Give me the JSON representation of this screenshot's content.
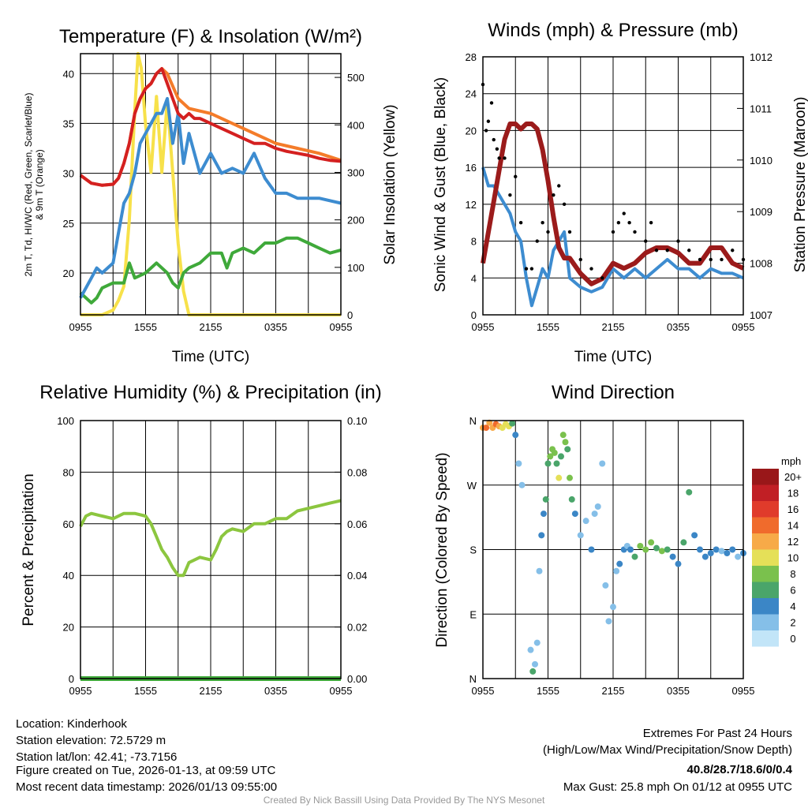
{
  "chart_data": [
    {
      "type": "line",
      "title": "Temperature (F) & Insolation (W/m²)",
      "xlabel": "Time (UTC)",
      "ylabel_lines": [
        "2m T, Td, HI/WC (Red, Green, Scarlet/Blue)",
        "& 9m T (Orange)"
      ],
      "ylabel_right": "Solar Insolation (Yellow)",
      "xticks": [
        "0955",
        "1555",
        "2155",
        "0355",
        "0955"
      ],
      "x_units": "hours since 0955 UTC",
      "xlim": [
        0,
        24
      ],
      "ylim": [
        15.8,
        42
      ],
      "yticks": [
        20,
        25,
        30,
        35,
        40
      ],
      "ylim_right": [
        0,
        550
      ],
      "yticks_right": [
        0,
        100,
        200,
        300,
        400,
        500
      ],
      "series": [
        {
          "name": "Solar Insolation",
          "axis": "right",
          "color": "#f7e14a",
          "x": [
            0,
            2,
            3,
            3.5,
            4,
            4.5,
            5,
            5.3,
            5.6,
            6,
            6.5,
            7,
            7.5,
            8,
            8.5,
            9,
            9.5,
            10,
            24
          ],
          "y": [
            0,
            0,
            10,
            30,
            60,
            200,
            430,
            550,
            520,
            400,
            300,
            460,
            300,
            450,
            300,
            150,
            50,
            0,
            0
          ]
        },
        {
          "name": "Dewpoint",
          "axis": "left",
          "color": "#3fa93a",
          "x": [
            0,
            1,
            1.5,
            2,
            3,
            4,
            4.5,
            5,
            6,
            6.5,
            7,
            8,
            8.5,
            9,
            9.5,
            10,
            11,
            12,
            13,
            13.5,
            14,
            15,
            16,
            17,
            18,
            19,
            20,
            21,
            22,
            23,
            24
          ],
          "y": [
            18,
            17,
            17.5,
            18.5,
            19,
            19,
            21,
            19.5,
            20,
            20.5,
            21,
            20,
            19,
            18.5,
            20,
            20.5,
            21,
            22,
            22,
            20.5,
            22,
            22.5,
            22,
            23,
            23,
            23.5,
            23.5,
            23,
            22.5,
            22,
            22.3
          ]
        },
        {
          "name": "Wind Chill",
          "axis": "left",
          "color": "#3d8cd0",
          "x": [
            0,
            1,
            1.5,
            2,
            2.5,
            3,
            3.5,
            4,
            4.5,
            5,
            5.5,
            6,
            6.5,
            7,
            7.5,
            8,
            8.5,
            9,
            9.5,
            10,
            11,
            12,
            13,
            14,
            15,
            16,
            17,
            18,
            19,
            20,
            22,
            24
          ],
          "y": [
            17.5,
            19.5,
            20.5,
            20,
            20.5,
            21,
            24,
            27,
            28,
            30,
            33,
            34,
            35,
            36,
            36,
            37.5,
            33,
            36,
            31,
            34,
            30,
            32,
            30,
            30.5,
            30,
            32,
            29.5,
            28,
            28,
            27.5,
            27.5,
            27
          ]
        },
        {
          "name": "9m Temperature",
          "axis": "left",
          "color": "#f47c2a",
          "x": [
            0,
            1,
            2,
            3,
            3.5,
            4,
            4.5,
            5,
            5.5,
            6,
            6.5,
            7,
            7.5,
            8,
            9,
            10,
            12,
            14,
            16,
            18,
            20,
            22,
            24
          ],
          "y": [
            29.8,
            29,
            28.8,
            28.9,
            29.5,
            31,
            33,
            36,
            37.5,
            38.5,
            39,
            40,
            40.5,
            40,
            37.5,
            36.5,
            36,
            35,
            34,
            33,
            32.5,
            32,
            31.3
          ]
        },
        {
          "name": "2m Temperature",
          "axis": "left",
          "color": "#d42020",
          "x": [
            0,
            1,
            2,
            3,
            3.5,
            4,
            4.5,
            5,
            5.5,
            6,
            6.5,
            7,
            7.5,
            8,
            8.5,
            9,
            9.5,
            10,
            10.5,
            11,
            12,
            13,
            14,
            15,
            16,
            17,
            18,
            19,
            20,
            21,
            22,
            23,
            24
          ],
          "y": [
            29.8,
            29,
            28.8,
            28.9,
            29.5,
            31,
            33,
            36,
            37.5,
            38.5,
            39,
            40,
            40.5,
            39,
            37.5,
            36,
            35.5,
            36,
            35.5,
            35.5,
            35,
            34.5,
            34,
            33.5,
            33,
            33,
            32.5,
            32.2,
            32,
            31.8,
            31.5,
            31.3,
            31.2
          ]
        }
      ]
    },
    {
      "type": "line",
      "title": "Winds (mph) & Pressure (mb)",
      "xlabel": "Time (UTC)",
      "ylabel": "Sonic Wind & Gust (Blue, Black)",
      "ylabel_right": "Station Pressure (Maroon)",
      "xticks": [
        "0955",
        "1555",
        "2155",
        "0355",
        "0955"
      ],
      "xlim": [
        0,
        24
      ],
      "ylim": [
        0,
        28
      ],
      "yticks": [
        0,
        4,
        8,
        12,
        16,
        20,
        24,
        28
      ],
      "ylim_right": [
        1007,
        1012
      ],
      "yticks_right": [
        1007,
        1008,
        1009,
        1010,
        1011,
        1012
      ],
      "series": [
        {
          "name": "Sonic Wind",
          "axis": "left",
          "color": "#3d8cd0",
          "x": [
            0,
            0.5,
            1,
            2,
            2.5,
            3,
            3.5,
            4,
            4.5,
            5,
            5.5,
            6,
            6.5,
            7,
            7.5,
            8,
            9,
            10,
            11,
            12,
            13,
            14,
            15,
            16,
            17,
            18,
            19,
            20,
            21,
            22,
            23,
            24
          ],
          "y": [
            16,
            14,
            14,
            12,
            11,
            9,
            8,
            4,
            1,
            3,
            5,
            4,
            7,
            8,
            9,
            4,
            3,
            2.5,
            3,
            5,
            4,
            5,
            4,
            5,
            6,
            5,
            5,
            4,
            5,
            4.5,
            4.5,
            4
          ]
        },
        {
          "name": "Station Pressure",
          "axis": "right",
          "color": "#9b1b1b",
          "x": [
            0,
            0.5,
            1,
            1.5,
            2,
            2.5,
            3,
            3.5,
            4,
            4.5,
            5,
            5.5,
            6,
            6.5,
            7,
            7.5,
            8,
            9,
            10,
            11,
            12,
            13,
            14,
            15,
            16,
            17,
            18,
            19,
            20,
            21,
            22,
            23,
            24
          ],
          "y": [
            1008.0,
            1008.6,
            1009.2,
            1009.8,
            1010.4,
            1010.7,
            1010.7,
            1010.6,
            1010.7,
            1010.7,
            1010.6,
            1010.2,
            1009.6,
            1008.9,
            1008.3,
            1008.1,
            1008.1,
            1007.8,
            1007.6,
            1007.7,
            1008.0,
            1007.9,
            1008.0,
            1008.2,
            1008.3,
            1008.3,
            1008.2,
            1008.0,
            1008.0,
            1008.3,
            1008.3,
            1008.0,
            1007.9
          ]
        },
        {
          "name": "Gust",
          "axis": "left",
          "color": "#000000",
          "points": true,
          "x": [
            0,
            0.3,
            0.5,
            0.8,
            1,
            1.3,
            1.5,
            2,
            2.5,
            3,
            3.5,
            4,
            4.5,
            5,
            5.5,
            6,
            6.5,
            7,
            7.5,
            8,
            9,
            10,
            11,
            12,
            12.5,
            13,
            13.5,
            14,
            15,
            15.5,
            16,
            17,
            18,
            19,
            20,
            21,
            22,
            23,
            24
          ],
          "y": [
            25,
            20,
            21,
            23,
            19,
            18,
            17,
            17,
            13,
            15,
            10,
            5,
            5,
            8,
            10,
            9,
            13,
            14,
            12,
            9,
            6,
            5,
            4,
            9,
            10,
            11,
            10,
            9,
            8,
            10,
            7,
            7,
            8,
            7,
            6,
            6,
            6,
            7,
            6
          ]
        }
      ]
    },
    {
      "type": "line",
      "title": "Relative Humidity (%) & Precipitation (in)",
      "ylabel": "Percent & Precipitation",
      "xticks": [
        "0955",
        "1555",
        "2155",
        "0355",
        "0955"
      ],
      "xlim": [
        0,
        24
      ],
      "ylim": [
        0,
        100
      ],
      "yticks": [
        0,
        20,
        40,
        60,
        80,
        100
      ],
      "ylim_right": [
        0,
        0.1
      ],
      "yticks_right": [
        "0.00",
        "0.02",
        "0.04",
        "0.06",
        "0.08",
        "0.10"
      ],
      "series": [
        {
          "name": "Precipitation",
          "axis": "right",
          "color": "#3fa93a",
          "x": [
            0,
            24
          ],
          "y": [
            0,
            0
          ]
        },
        {
          "name": "Relative Humidity",
          "axis": "left",
          "color": "#8cc63f",
          "x": [
            0,
            0.5,
            1,
            2,
            3,
            4,
            5,
            6,
            6.5,
            7,
            7.5,
            8,
            8.5,
            9,
            9.5,
            10,
            11,
            12,
            12.5,
            13,
            13.5,
            14,
            15,
            16,
            17,
            18,
            19,
            20,
            21,
            22,
            23,
            24
          ],
          "y": [
            59,
            63,
            64,
            63,
            62,
            64,
            64,
            63,
            60,
            55,
            50,
            47,
            43,
            40,
            40,
            45,
            47,
            46,
            50,
            55,
            57,
            58,
            57,
            60,
            60,
            62,
            62,
            65,
            66,
            67,
            68,
            69
          ]
        }
      ]
    },
    {
      "type": "scatter",
      "title": "Wind Direction",
      "ylabel": "Direction (Colored By Speed)",
      "xticks": [
        "0955",
        "1555",
        "2155",
        "0355",
        "0955"
      ],
      "xlim": [
        0,
        24
      ],
      "ylim": [
        0,
        360
      ],
      "yticks": [
        "N",
        "E",
        "S",
        "W",
        "N"
      ],
      "colorbar": {
        "title": "mph",
        "labels": [
          "20+",
          "18",
          "16",
          "14",
          "12",
          "10",
          "8",
          "6",
          "4",
          "2",
          "0"
        ],
        "colors": [
          "#991719",
          "#c11f25",
          "#e03b2b",
          "#f06b2c",
          "#f7aa48",
          "#e5e058",
          "#7ac14d",
          "#4aa56a",
          "#3b86c6",
          "#85bfe8",
          "#c2e5f8"
        ]
      },
      "points": {
        "x": [
          0,
          0.3,
          0.6,
          0.9,
          1.2,
          1.5,
          1.8,
          2.1,
          2.4,
          2.7,
          3.0,
          3.3,
          3.6,
          4.4,
          4.6,
          4.8,
          5.0,
          5.2,
          5.4,
          5.6,
          5.8,
          6.0,
          6.2,
          6.4,
          6.6,
          6.8,
          7.0,
          7.2,
          7.4,
          7.6,
          7.8,
          8.0,
          8.2,
          8.5,
          9,
          9.5,
          10,
          10.3,
          10.6,
          11,
          11.3,
          11.6,
          12,
          12.3,
          12.6,
          13,
          13.3,
          13.6,
          14,
          14.5,
          15,
          15.5,
          16,
          16.5,
          17,
          17.5,
          18,
          18.5,
          19,
          19.5,
          20,
          20.5,
          21,
          21.5,
          22,
          22.5,
          23,
          23.5,
          24
        ],
        "y": [
          350,
          350,
          357,
          350,
          355,
          352,
          350,
          355,
          352,
          356,
          340,
          300,
          270,
          40,
          10,
          20,
          50,
          150,
          200,
          230,
          250,
          300,
          310,
          320,
          315,
          300,
          280,
          310,
          340,
          330,
          320,
          280,
          250,
          230,
          200,
          220,
          180,
          230,
          240,
          300,
          130,
          80,
          100,
          150,
          160,
          180,
          185,
          180,
          170,
          185,
          180,
          190,
          182,
          178,
          180,
          170,
          160,
          190,
          260,
          200,
          180,
          170,
          175,
          180,
          178,
          175,
          180,
          170,
          175
        ],
        "speed": [
          13,
          14,
          13,
          12,
          14,
          12,
          11,
          10,
          11,
          6,
          5,
          2,
          2,
          3,
          6,
          2,
          3,
          2,
          4,
          5,
          6,
          7,
          8,
          9,
          8,
          7,
          10,
          6,
          8,
          9,
          7,
          8,
          7,
          4,
          3,
          3,
          4,
          3,
          2,
          2,
          3,
          2,
          2,
          3,
          4,
          4,
          3,
          4,
          7,
          8,
          8,
          9,
          6,
          9,
          7,
          5,
          5,
          6,
          6,
          4,
          4,
          5,
          4,
          4,
          3,
          4,
          4,
          3,
          4
        ]
      }
    }
  ],
  "info": {
    "location": "Location: Kinderhook",
    "elevation": "Station elevation: 72.5729 m",
    "latlon": "Station lat/lon: 42.41; -73.7156",
    "created": "Figure created on Tue, 2026-01-13, at 09:59 UTC",
    "recent": "Most recent data timestamp: 2026/01/13 09:55:00"
  },
  "extremes": {
    "title": "Extremes For Past 24 Hours",
    "subtitle": "(High/Low/Max Wind/Precipitation/Snow Depth)",
    "values": "40.8/28.7/18.6/0/0.4",
    "gust": "Max Gust: 25.8 mph On 01/12 at 0955 UTC",
    "color": "#d42020"
  },
  "credit": "Created By Nick Bassill Using Data Provided By The NYS Mesonet"
}
